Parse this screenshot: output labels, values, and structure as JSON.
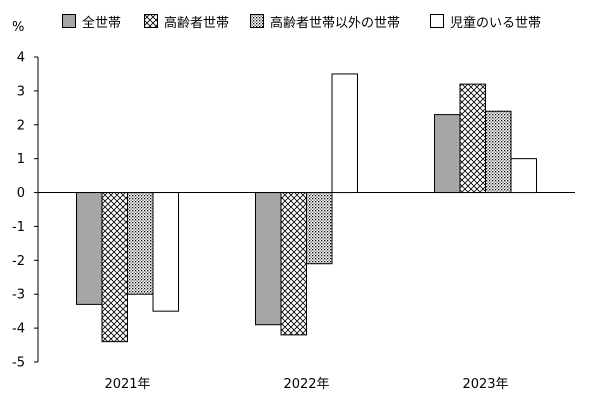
{
  "chart_data": {
    "type": "bar",
    "unit_label": "%",
    "categories": [
      "2021年",
      "2022年",
      "2023年"
    ],
    "series": [
      {
        "name": "全世帯",
        "values": [
          -3.3,
          -3.9,
          2.3
        ],
        "fill": "#a6a6a6",
        "pattern": "solid"
      },
      {
        "name": "高齢者世帯",
        "values": [
          -4.4,
          -4.2,
          3.2
        ],
        "fill": "#ffffff",
        "pattern": "crosshatch"
      },
      {
        "name": "高齢者世帯以外の世帯",
        "values": [
          -3.0,
          -2.1,
          2.4
        ],
        "fill": "#ffffff",
        "pattern": "dots"
      },
      {
        "name": "児童のいる世帯",
        "values": [
          -3.5,
          3.5,
          1.0
        ],
        "fill": "#ffffff",
        "pattern": "none"
      }
    ],
    "ylim": [
      -5,
      4
    ],
    "yticks": [
      4,
      3,
      2,
      1,
      0,
      -1,
      -2,
      -3,
      -4,
      -5
    ],
    "grid": false,
    "legend_position": "top"
  }
}
